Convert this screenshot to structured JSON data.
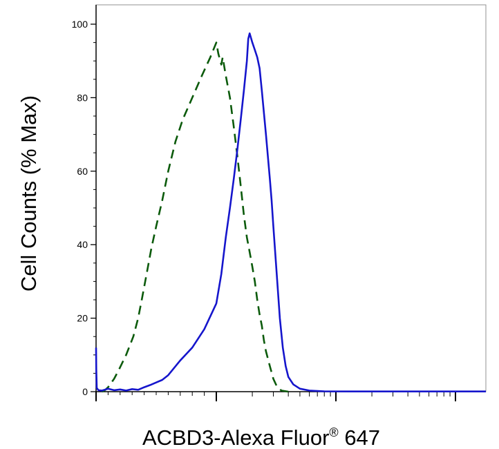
{
  "chart_data": {
    "type": "line",
    "xlabel": "ACBD3-Alexa Fluor",
    "xlabel_sup": "®",
    "xlabel_suffix": "647",
    "ylabel": "Cell Counts (% Max)",
    "ylim": [
      0,
      100
    ],
    "yticks": [
      0,
      20,
      40,
      60,
      80,
      100
    ],
    "ytick_labels": [
      "0",
      "20",
      "40",
      "60",
      "80",
      "100"
    ],
    "xscale": "log",
    "grid": false,
    "legend": "none",
    "series": [
      {
        "style": "dashed",
        "color": "#0b5a0b",
        "points": [
          [
            0.05,
            0
          ],
          [
            0.07,
            0.3
          ],
          [
            0.1,
            1.2
          ],
          [
            0.15,
            3.5
          ],
          [
            0.19,
            6
          ],
          [
            0.25,
            10
          ],
          [
            0.31,
            15
          ],
          [
            0.35,
            20
          ],
          [
            0.38,
            25
          ],
          [
            0.42,
            32
          ],
          [
            0.46,
            39
          ],
          [
            0.5,
            45
          ],
          [
            0.55,
            52
          ],
          [
            0.6,
            60
          ],
          [
            0.66,
            68
          ],
          [
            0.72,
            74
          ],
          [
            0.8,
            80
          ],
          [
            0.88,
            86
          ],
          [
            0.95,
            91
          ],
          [
            1.0,
            95
          ],
          [
            1.04,
            92
          ],
          [
            1.1,
            89
          ],
          [
            1.13,
            91
          ],
          [
            1.2,
            86
          ],
          [
            1.3,
            80
          ],
          [
            1.4,
            72
          ],
          [
            1.5,
            64
          ],
          [
            1.6,
            56
          ],
          [
            1.7,
            48
          ],
          [
            1.8,
            42
          ],
          [
            1.9,
            38
          ],
          [
            2.0,
            34
          ],
          [
            2.1,
            30
          ],
          [
            2.2,
            25
          ],
          [
            2.3,
            21
          ],
          [
            2.4,
            18
          ],
          [
            2.5,
            14
          ],
          [
            2.6,
            11
          ],
          [
            2.8,
            7
          ],
          [
            3.0,
            3.5
          ],
          [
            3.2,
            1.5
          ],
          [
            3.5,
            0.3
          ],
          [
            4.0,
            0
          ]
        ]
      },
      {
        "style": "solid",
        "color": "#1515cc",
        "points": [
          [
            0.0,
            12
          ],
          [
            0.002,
            6
          ],
          [
            0.006,
            1
          ],
          [
            0.02,
            0.4
          ],
          [
            0.05,
            0.3
          ],
          [
            0.1,
            0.8
          ],
          [
            0.15,
            0.4
          ],
          [
            0.2,
            0.6
          ],
          [
            0.25,
            0.3
          ],
          [
            0.3,
            0.7
          ],
          [
            0.35,
            0.5
          ],
          [
            0.4,
            1.2
          ],
          [
            0.45,
            1.8
          ],
          [
            0.5,
            2.5
          ],
          [
            0.55,
            3.2
          ],
          [
            0.6,
            4.5
          ],
          [
            0.65,
            6.5
          ],
          [
            0.7,
            8.5
          ],
          [
            0.8,
            12
          ],
          [
            0.9,
            17
          ],
          [
            1.0,
            24
          ],
          [
            1.1,
            32
          ],
          [
            1.2,
            42
          ],
          [
            1.3,
            50
          ],
          [
            1.4,
            58
          ],
          [
            1.5,
            66
          ],
          [
            1.6,
            74
          ],
          [
            1.7,
            82
          ],
          [
            1.8,
            90
          ],
          [
            1.85,
            96
          ],
          [
            1.9,
            97.5
          ],
          [
            2.0,
            95
          ],
          [
            2.1,
            93
          ],
          [
            2.2,
            91
          ],
          [
            2.3,
            88
          ],
          [
            2.4,
            82
          ],
          [
            2.5,
            76
          ],
          [
            2.6,
            70
          ],
          [
            2.7,
            64
          ],
          [
            2.8,
            58
          ],
          [
            2.9,
            52
          ],
          [
            3.0,
            45
          ],
          [
            3.2,
            32
          ],
          [
            3.4,
            20
          ],
          [
            3.6,
            12
          ],
          [
            3.8,
            7
          ],
          [
            4.0,
            4
          ],
          [
            4.4,
            2
          ],
          [
            5.0,
            0.8
          ],
          [
            6.0,
            0.3
          ],
          [
            8.0,
            0.1
          ],
          [
            15.0,
            0.05
          ],
          [
            60.0,
            0.05
          ],
          [
            900.0,
            0.05
          ]
        ]
      }
    ]
  }
}
